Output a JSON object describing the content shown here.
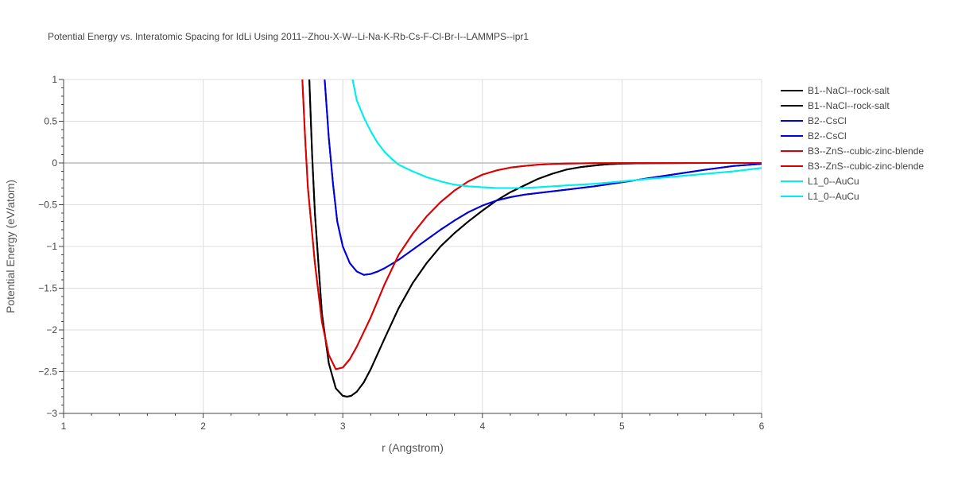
{
  "chart_data": {
    "type": "line",
    "title": "Potential Energy vs. Interatomic Spacing for IdLi Using 2011--Zhou-X-W--Li-Na-K-Rb-Cs-F-Cl-Br-I--LAMMPS--ipr1",
    "xlabel": "r (Angstrom)",
    "ylabel": "Potential Energy (eV/atom)",
    "xlim": [
      1,
      6
    ],
    "ylim": [
      -3,
      1
    ],
    "xticks": [
      1,
      2,
      3,
      4,
      5,
      6
    ],
    "xtick_labels": [
      "1",
      "2",
      "3",
      "4",
      "5",
      "6"
    ],
    "yticks": [
      1,
      0.5,
      0,
      -0.5,
      -1,
      -1.5,
      -2,
      -2.5,
      -3
    ],
    "ytick_labels": [
      "1",
      "0.5",
      "0",
      "−0.5",
      "−1",
      "−1.5",
      "−2",
      "−2.5",
      "−3"
    ],
    "grid": true,
    "legend_position": "top-right",
    "series": [
      {
        "name": "B1--NaCl--rock-salt",
        "color": "#000000",
        "x": [
          2.76,
          2.78,
          2.8,
          2.85,
          2.9,
          2.95,
          3.0,
          3.03,
          3.06,
          3.1,
          3.15,
          3.2,
          3.3,
          3.4,
          3.5,
          3.6,
          3.7,
          3.8,
          3.9,
          4.0,
          4.1,
          4.2,
          4.3,
          4.4,
          4.5,
          4.6,
          4.7,
          4.8,
          4.9,
          5.0,
          5.2,
          5.4,
          5.6,
          5.8,
          6.0
        ],
        "y": [
          1.0,
          0.1,
          -0.6,
          -1.8,
          -2.4,
          -2.7,
          -2.79,
          -2.8,
          -2.79,
          -2.74,
          -2.63,
          -2.47,
          -2.1,
          -1.74,
          -1.44,
          -1.2,
          -1.0,
          -0.84,
          -0.7,
          -0.57,
          -0.45,
          -0.35,
          -0.27,
          -0.19,
          -0.13,
          -0.08,
          -0.05,
          -0.03,
          -0.015,
          -0.007,
          -0.003,
          -0.001,
          0.0,
          0.0,
          0.0
        ]
      },
      {
        "name": "B1--NaCl--rock-salt",
        "color": "#000000",
        "x": [
          2.76,
          2.78,
          2.8,
          2.85,
          2.9,
          2.95,
          3.0,
          3.03,
          3.06,
          3.1,
          3.15,
          3.2,
          3.3,
          3.4,
          3.5,
          3.6,
          3.7,
          3.8,
          3.9,
          4.0,
          4.1,
          4.2,
          4.3,
          4.4,
          4.5,
          4.6,
          4.7,
          4.8,
          4.9,
          5.0,
          5.2,
          5.4,
          5.6,
          5.8,
          6.0
        ],
        "y": [
          1.0,
          0.1,
          -0.6,
          -1.8,
          -2.4,
          -2.7,
          -2.79,
          -2.8,
          -2.79,
          -2.74,
          -2.63,
          -2.47,
          -2.1,
          -1.74,
          -1.44,
          -1.2,
          -1.0,
          -0.84,
          -0.7,
          -0.57,
          -0.45,
          -0.35,
          -0.27,
          -0.19,
          -0.13,
          -0.08,
          -0.05,
          -0.03,
          -0.015,
          -0.007,
          -0.003,
          -0.001,
          0.0,
          0.0,
          0.0
        ]
      },
      {
        "name": "B2--CsCl",
        "color": "#0000dd",
        "x": [
          2.87,
          2.9,
          2.93,
          2.96,
          3.0,
          3.05,
          3.1,
          3.15,
          3.2,
          3.25,
          3.3,
          3.4,
          3.5,
          3.6,
          3.7,
          3.8,
          3.9,
          4.0,
          4.1,
          4.2,
          4.3,
          4.4,
          4.6,
          4.8,
          5.0,
          5.2,
          5.4,
          5.6,
          5.8,
          6.0
        ],
        "y": [
          1.0,
          0.3,
          -0.25,
          -0.7,
          -1.0,
          -1.2,
          -1.3,
          -1.34,
          -1.33,
          -1.3,
          -1.26,
          -1.16,
          -1.04,
          -0.92,
          -0.8,
          -0.69,
          -0.59,
          -0.51,
          -0.45,
          -0.41,
          -0.38,
          -0.36,
          -0.32,
          -0.28,
          -0.23,
          -0.18,
          -0.13,
          -0.08,
          -0.035,
          -0.01
        ]
      },
      {
        "name": "B2--CsCl",
        "color": "#0000dd",
        "x": [
          2.87,
          2.9,
          2.93,
          2.96,
          3.0,
          3.05,
          3.1,
          3.15,
          3.2,
          3.25,
          3.3,
          3.4,
          3.5,
          3.6,
          3.7,
          3.8,
          3.9,
          4.0,
          4.1,
          4.2,
          4.3,
          4.4,
          4.6,
          4.8,
          5.0,
          5.2,
          5.4,
          5.6,
          5.8,
          6.0
        ],
        "y": [
          1.0,
          0.3,
          -0.25,
          -0.7,
          -1.0,
          -1.2,
          -1.3,
          -1.34,
          -1.33,
          -1.3,
          -1.26,
          -1.16,
          -1.04,
          -0.92,
          -0.8,
          -0.69,
          -0.59,
          -0.51,
          -0.45,
          -0.41,
          -0.38,
          -0.36,
          -0.32,
          -0.28,
          -0.23,
          -0.18,
          -0.13,
          -0.08,
          -0.035,
          -0.01
        ]
      },
      {
        "name": "B3--ZnS--cubic-zinc-blende",
        "color": "#dd0000",
        "x": [
          2.71,
          2.73,
          2.75,
          2.8,
          2.85,
          2.9,
          2.95,
          3.0,
          3.05,
          3.1,
          3.2,
          3.3,
          3.4,
          3.5,
          3.6,
          3.7,
          3.8,
          3.9,
          4.0,
          4.1,
          4.2,
          4.3,
          4.4,
          4.5,
          4.6,
          4.8,
          5.0,
          5.5,
          6.0
        ],
        "y": [
          1.0,
          0.3,
          -0.3,
          -1.2,
          -1.9,
          -2.3,
          -2.47,
          -2.45,
          -2.35,
          -2.2,
          -1.85,
          -1.45,
          -1.1,
          -0.85,
          -0.64,
          -0.47,
          -0.33,
          -0.22,
          -0.14,
          -0.09,
          -0.055,
          -0.035,
          -0.02,
          -0.012,
          -0.007,
          -0.003,
          -0.001,
          0.0,
          0.0
        ]
      },
      {
        "name": "B3--ZnS--cubic-zinc-blende",
        "color": "#dd0000",
        "x": [
          2.71,
          2.73,
          2.75,
          2.8,
          2.85,
          2.9,
          2.95,
          3.0,
          3.05,
          3.1,
          3.2,
          3.3,
          3.4,
          3.5,
          3.6,
          3.7,
          3.8,
          3.9,
          4.0,
          4.1,
          4.2,
          4.3,
          4.4,
          4.5,
          4.6,
          4.8,
          5.0,
          5.5,
          6.0
        ],
        "y": [
          1.0,
          0.3,
          -0.3,
          -1.2,
          -1.9,
          -2.3,
          -2.47,
          -2.45,
          -2.35,
          -2.2,
          -1.85,
          -1.45,
          -1.1,
          -0.85,
          -0.64,
          -0.47,
          -0.33,
          -0.22,
          -0.14,
          -0.09,
          -0.055,
          -0.035,
          -0.02,
          -0.012,
          -0.007,
          -0.003,
          -0.001,
          0.0,
          0.0
        ]
      },
      {
        "name": "L1_0--AuCu",
        "color": "#00eeee",
        "x": [
          3.07,
          3.1,
          3.15,
          3.2,
          3.25,
          3.3,
          3.35,
          3.4,
          3.5,
          3.6,
          3.7,
          3.8,
          3.9,
          4.0,
          4.1,
          4.2,
          4.3,
          4.4,
          4.6,
          4.8,
          5.0,
          5.2,
          5.4,
          5.6,
          5.8,
          6.0
        ],
        "y": [
          1.0,
          0.75,
          0.55,
          0.38,
          0.24,
          0.13,
          0.05,
          -0.02,
          -0.1,
          -0.17,
          -0.22,
          -0.26,
          -0.28,
          -0.29,
          -0.3,
          -0.3,
          -0.3,
          -0.29,
          -0.27,
          -0.25,
          -0.22,
          -0.19,
          -0.16,
          -0.13,
          -0.1,
          -0.06
        ]
      },
      {
        "name": "L1_0--AuCu",
        "color": "#00eeee",
        "x": [
          3.07,
          3.1,
          3.15,
          3.2,
          3.25,
          3.3,
          3.35,
          3.4,
          3.5,
          3.6,
          3.7,
          3.8,
          3.9,
          4.0,
          4.1,
          4.2,
          4.3,
          4.4,
          4.6,
          4.8,
          5.0,
          5.2,
          5.4,
          5.6,
          5.8,
          6.0
        ],
        "y": [
          1.0,
          0.75,
          0.55,
          0.38,
          0.24,
          0.13,
          0.05,
          -0.02,
          -0.1,
          -0.17,
          -0.22,
          -0.26,
          -0.28,
          -0.29,
          -0.3,
          -0.3,
          -0.3,
          -0.29,
          -0.27,
          -0.25,
          -0.22,
          -0.19,
          -0.16,
          -0.13,
          -0.1,
          -0.06
        ]
      }
    ]
  }
}
